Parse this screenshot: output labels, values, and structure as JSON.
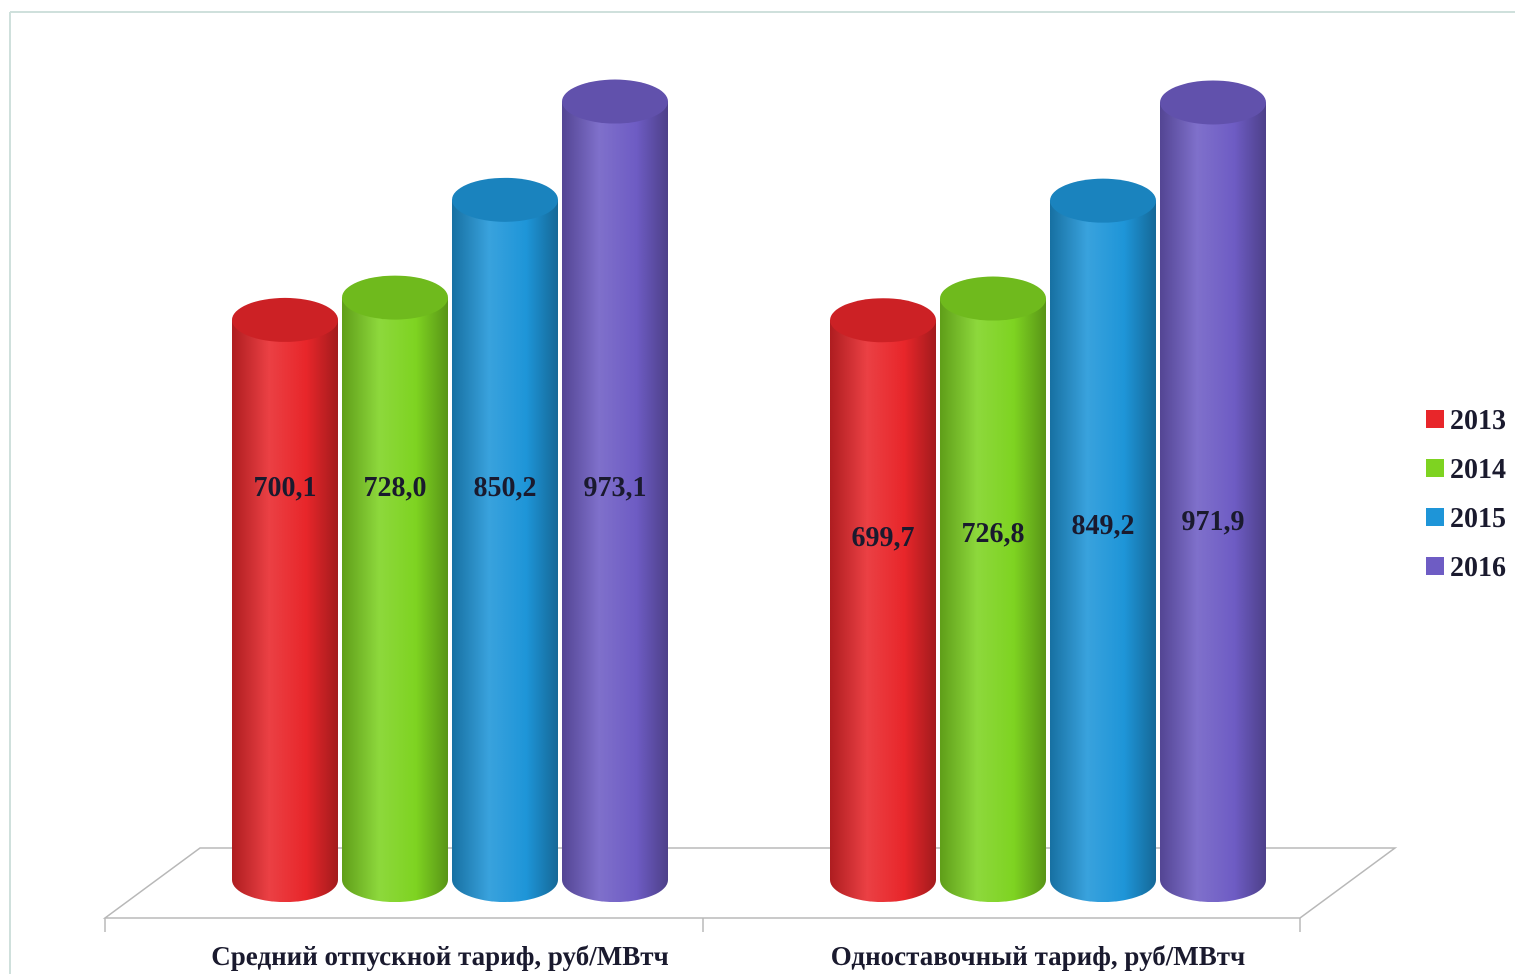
{
  "chart_data": {
    "type": "bar",
    "categories": [
      "Средний отпускной тариф, руб/МВтч",
      "Одноставочный тариф, руб/МВтч"
    ],
    "series": [
      {
        "name": "2013",
        "color": "#e8262a",
        "values": [
          700.1,
          699.7
        ],
        "labels": [
          "700,1",
          "699,7"
        ]
      },
      {
        "name": "2014",
        "color": "#7ed321",
        "values": [
          728.0,
          726.8
        ],
        "labels": [
          "728,0",
          "726,8"
        ]
      },
      {
        "name": "2015",
        "color": "#1e95d8",
        "values": [
          850.2,
          849.2
        ],
        "labels": [
          "850,2",
          "849,2"
        ]
      },
      {
        "name": "2016",
        "color": "#6e5cc4",
        "values": [
          973.1,
          971.9
        ],
        "labels": [
          "973,1",
          "971,9"
        ]
      }
    ],
    "title": "",
    "xlabel": "",
    "ylabel": "",
    "legend_position": "right",
    "style": "3d-cylinder",
    "grid": false
  }
}
